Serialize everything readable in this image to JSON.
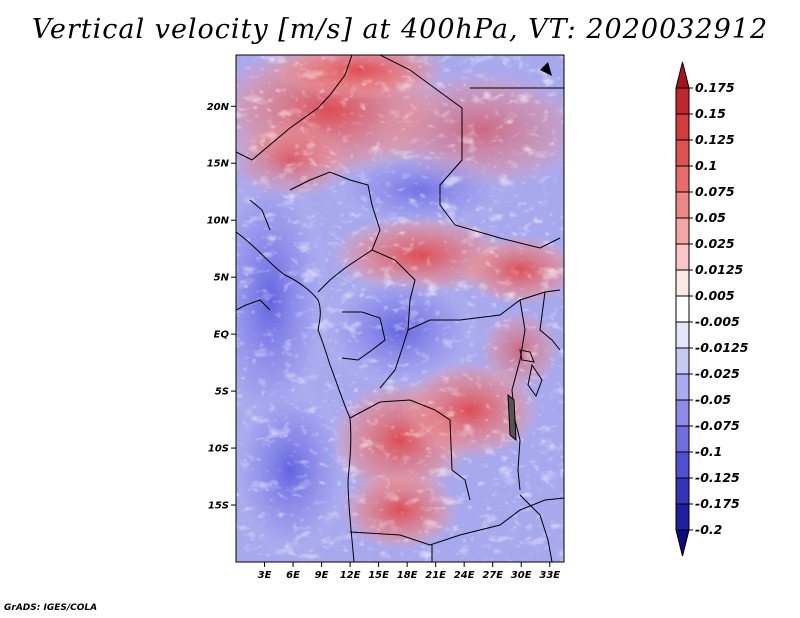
{
  "title": "Vertical velocity [m/s] at 400hPa, VT: 2020032912",
  "footer": "GrADS: IGES/COLA",
  "map": {
    "lat_labels": [
      "20N",
      "15N",
      "10N",
      "5N",
      "EQ",
      "5S",
      "10S",
      "15S"
    ],
    "lat_values": [
      20,
      15,
      10,
      5,
      0,
      -5,
      -10,
      -15
    ],
    "lon_labels": [
      "3E",
      "6E",
      "9E",
      "12E",
      "15E",
      "18E",
      "21E",
      "24E",
      "27E",
      "30E",
      "33E"
    ],
    "lon_values": [
      3,
      6,
      9,
      12,
      15,
      18,
      21,
      24,
      27,
      30,
      33
    ],
    "lon_range": [
      0,
      34.5
    ],
    "lat_range": [
      -20,
      24.5
    ]
  },
  "colorbar": {
    "labels": [
      "0.175",
      "0.15",
      "0.125",
      "0.1",
      "0.075",
      "0.05",
      "0.025",
      "0.0125",
      "0.005",
      "-0.005",
      "-0.0125",
      "-0.025",
      "-0.05",
      "-0.075",
      "-0.1",
      "-0.125",
      "-0.175",
      "-0.2"
    ],
    "colors": [
      "#a4141c",
      "#c0272d",
      "#d23c3c",
      "#e05252",
      "#e86a6a",
      "#ee8686",
      "#f3a6a6",
      "#f8c6c6",
      "#fde8e8",
      "#ffffff",
      "#e4e4fa",
      "#c8c8f4",
      "#aaaaf0",
      "#8c8ce8",
      "#6e6ee0",
      "#5050d2",
      "#3434b8",
      "#1e1ea0",
      "#0c0c80"
    ]
  }
}
